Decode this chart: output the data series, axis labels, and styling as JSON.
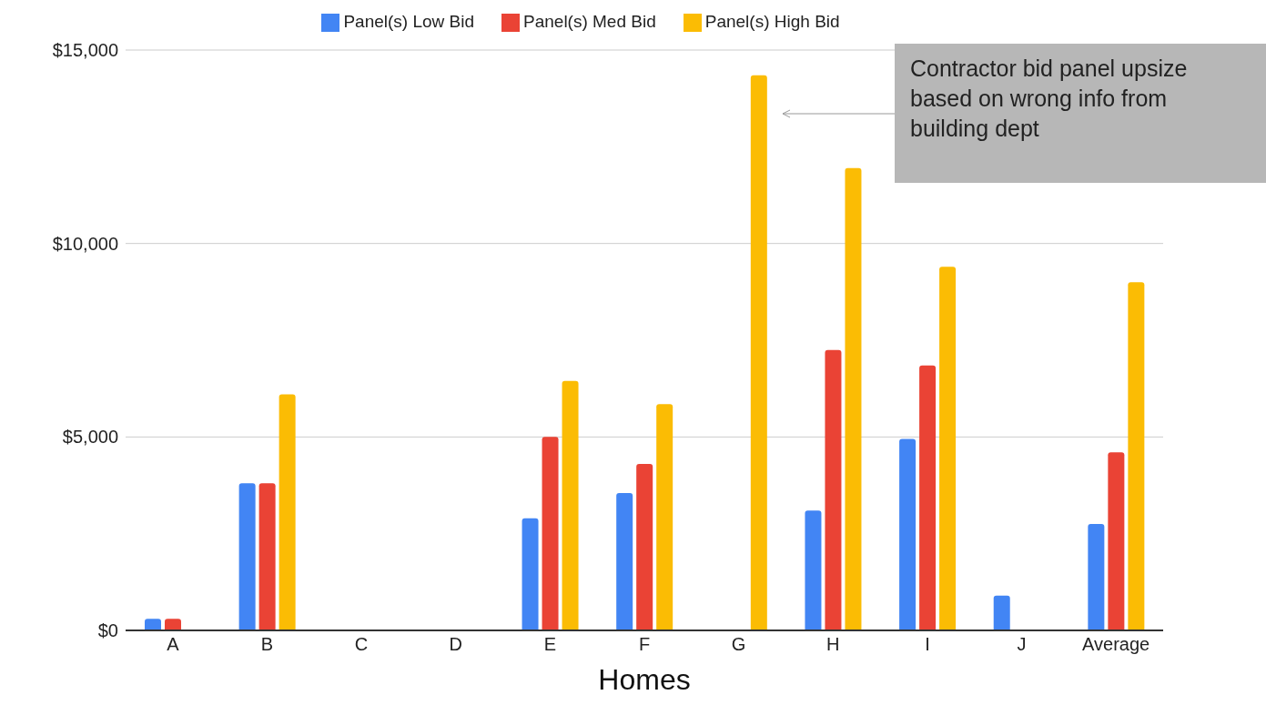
{
  "chart_data": {
    "type": "bar",
    "xlabel": "Homes",
    "categories": [
      "A",
      "B",
      "C",
      "D",
      "E",
      "F",
      "G",
      "H",
      "I",
      "J",
      "Average"
    ],
    "series": [
      {
        "name": "Panel(s) Low Bid",
        "color": "#4285f4",
        "values": [
          300,
          3800,
          null,
          null,
          2900,
          3550,
          null,
          3100,
          4950,
          900,
          2750
        ]
      },
      {
        "name": "Panel(s) Med Bid",
        "color": "#ea4335",
        "values": [
          300,
          3800,
          null,
          null,
          5000,
          4300,
          null,
          7250,
          6850,
          null,
          4600
        ]
      },
      {
        "name": "Panel(s) High Bid",
        "color": "#fbbc04",
        "values": [
          null,
          6100,
          null,
          null,
          6450,
          5850,
          14350,
          11950,
          9400,
          null,
          9000
        ]
      }
    ],
    "ylim": [
      0,
      15000
    ],
    "yticks": [
      {
        "value": 0,
        "label": "$0"
      },
      {
        "value": 5000,
        "label": "$5,000"
      },
      {
        "value": 10000,
        "label": "$10,000"
      },
      {
        "value": 15000,
        "label": "$15,000"
      }
    ],
    "grid": "y",
    "legend": "top",
    "annotations": [
      "Contractor bid panel upsize based on wrong info from building dept"
    ]
  }
}
